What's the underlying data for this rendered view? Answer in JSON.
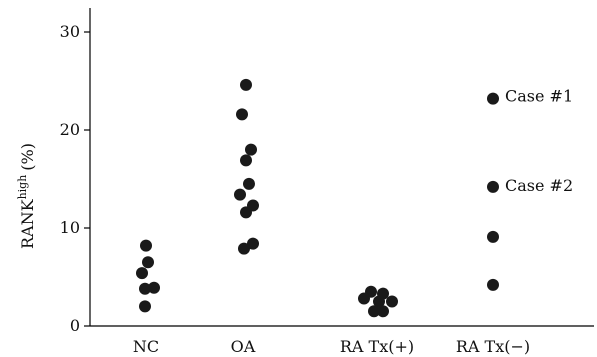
{
  "chart_data": {
    "type": "scatter",
    "ylabel": {
      "main": "RANK",
      "sup": "high",
      "unit": "(%)"
    },
    "xlabel": "",
    "ylim": [
      0,
      32
    ],
    "yticks": [
      0,
      10,
      20,
      30
    ],
    "grid": false,
    "legend": "none",
    "categories": [
      "NC",
      "OA",
      "RA Tx(+)",
      "RA Tx(−)"
    ],
    "marker_color": "#1a1a1a",
    "series": [
      {
        "category": "NC",
        "points": [
          {
            "offset": 0,
            "y": 8.2
          },
          {
            "offset": 0.2,
            "y": 6.5
          },
          {
            "offset": -0.4,
            "y": 5.4
          },
          {
            "offset": -0.1,
            "y": 3.8
          },
          {
            "offset": 0.8,
            "y": 3.9
          },
          {
            "offset": -0.1,
            "y": 2.0
          }
        ]
      },
      {
        "category": "OA",
        "points": [
          {
            "offset": 0.3,
            "y": 24.6
          },
          {
            "offset": -0.1,
            "y": 21.6
          },
          {
            "offset": 0.8,
            "y": 18.0
          },
          {
            "offset": 0.3,
            "y": 16.9
          },
          {
            "offset": 0.6,
            "y": 14.5
          },
          {
            "offset": -0.3,
            "y": 13.4
          },
          {
            "offset": 1.0,
            "y": 12.3
          },
          {
            "offset": 0.3,
            "y": 11.6
          },
          {
            "offset": 1.0,
            "y": 8.4
          },
          {
            "offset": 0.1,
            "y": 7.9
          }
        ]
      },
      {
        "category": "RA Tx(+)",
        "points": [
          {
            "offset": -0.6,
            "y": 3.5
          },
          {
            "offset": 0.6,
            "y": 3.3
          },
          {
            "offset": -1.3,
            "y": 2.8
          },
          {
            "offset": 0.2,
            "y": 2.5
          },
          {
            "offset": 1.5,
            "y": 2.5
          },
          {
            "offset": -0.3,
            "y": 1.5
          },
          {
            "offset": 0.6,
            "y": 1.5
          }
        ]
      },
      {
        "category": "RA Tx(−)",
        "points": [
          {
            "offset": 0,
            "y": 23.2
          },
          {
            "offset": 0,
            "y": 14.2
          },
          {
            "offset": 0,
            "y": 9.1
          },
          {
            "offset": 0,
            "y": 4.2
          }
        ]
      }
    ],
    "annotations": [
      {
        "text": "Case #1",
        "category": "RA Tx(−)",
        "y": 23.4
      },
      {
        "text": "Case #2",
        "category": "RA Tx(−)",
        "y": 14.3
      }
    ]
  }
}
